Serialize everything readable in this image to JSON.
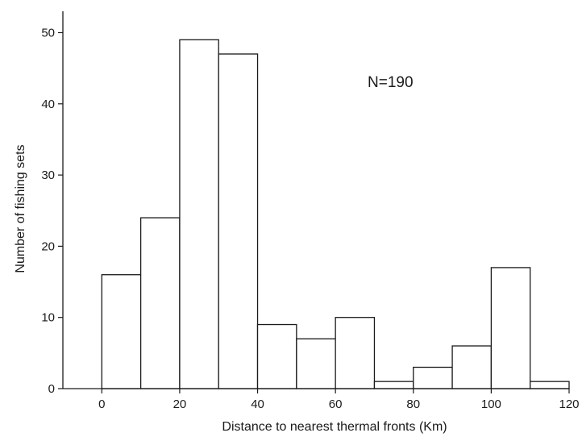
{
  "chart_data": {
    "type": "bar",
    "title": "",
    "xlabel": "Distance to nearest thermal fronts (Km)",
    "ylabel": "Number of fishing sets",
    "annotation": "N=190",
    "bin_width": 10,
    "bin_starts": [
      0,
      10,
      20,
      30,
      40,
      50,
      60,
      70,
      80,
      90,
      100,
      110
    ],
    "values": [
      16,
      24,
      49,
      47,
      9,
      7,
      10,
      1,
      3,
      6,
      17,
      1
    ],
    "xlim": [
      -10,
      120
    ],
    "ylim": [
      0,
      53
    ],
    "xticks": [
      0,
      20,
      40,
      60,
      80,
      100,
      120
    ],
    "yticks": [
      0,
      10,
      20,
      30,
      40,
      50
    ],
    "grid": false,
    "bar_fill": "#ffffff",
    "bar_edge": "#1a1a1a"
  }
}
